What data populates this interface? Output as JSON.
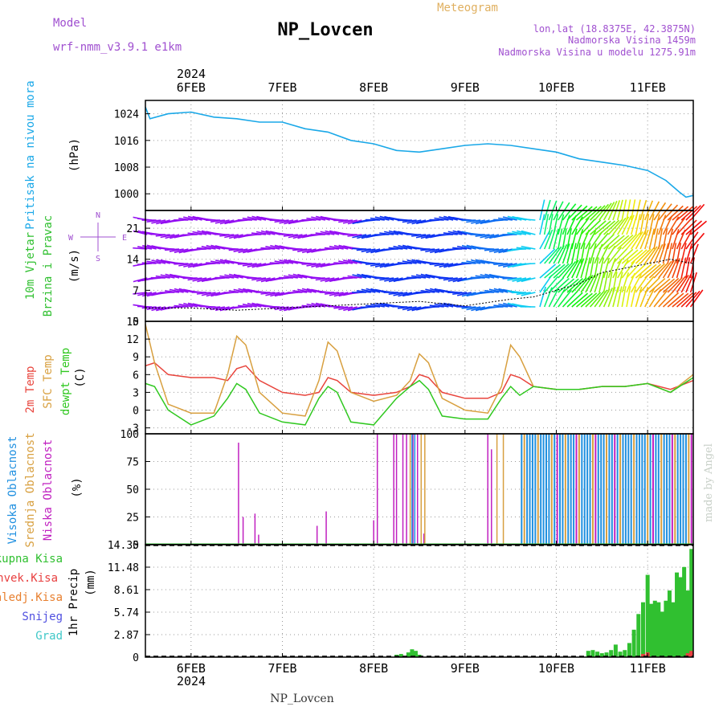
{
  "header": {
    "model_label": "Model",
    "model_name": "wrf-nmm_v3.9.1  e1km",
    "station": "NP_Lovcen",
    "product": "Meteogram",
    "lonlat": "lon,lat (18.8375E, 42.3875N)",
    "elevation": "Nadmorska Visina 1459m",
    "model_elevation": "Nadmorska Visina u modelu 1275.91m"
  },
  "footer_station": "NP_Lovcen",
  "watermark": "made by Angel",
  "year": "2024",
  "colors": {
    "pressure": "#1aa8e8",
    "temp": "#e8443c",
    "sfc": "#d8a040",
    "dew": "#30c820",
    "high_cloud": "#2090e0",
    "mid_cloud": "#d8a040",
    "low_cloud": "#c020c0",
    "precip_total": "#30c030",
    "precip_conv": "#e84040"
  },
  "chart_data": [
    {
      "type": "line",
      "panel": "pressure",
      "ylabel": [
        "Pritisak na nivou mora",
        "(hPa)"
      ],
      "ylim": [
        995,
        1028
      ],
      "yticks": [
        1000,
        1008,
        1016,
        1024
      ],
      "x_ticks": [
        "6FEB",
        "7FEB",
        "8FEB",
        "9FEB",
        "10FEB",
        "11FEB"
      ],
      "x_range_days": [
        5.5,
        11.5
      ],
      "grid": true,
      "series": [
        {
          "name": "",
          "x": [
            5.5,
            5.55,
            5.75,
            6.0,
            6.25,
            6.5,
            6.75,
            7.0,
            7.25,
            7.5,
            7.75,
            8.0,
            8.25,
            8.5,
            8.75,
            9.0,
            9.25,
            9.5,
            9.75,
            10.0,
            10.25,
            10.5,
            10.75,
            11.0,
            11.2,
            11.35,
            11.42,
            11.5
          ],
          "values": [
            1026,
            1022.5,
            1024,
            1024.5,
            1023,
            1022.5,
            1021.5,
            1021.5,
            1019.5,
            1018.5,
            1016,
            1015,
            1013,
            1012.5,
            1013.5,
            1014.5,
            1015,
            1014.5,
            1013.5,
            1012.5,
            1010.5,
            1009.5,
            1008.5,
            1007,
            1004,
            1000.5,
            999,
            999.5
          ]
        }
      ]
    },
    {
      "type": "line",
      "panel": "wind",
      "ylabel": [
        "10m Vjetar",
        "Brzina i Pravac",
        "(m/s)"
      ],
      "compass": [
        "N",
        "W",
        "E",
        "S"
      ],
      "ylim": [
        0,
        25
      ],
      "yticks": [
        0,
        7,
        14,
        21
      ],
      "grid": true,
      "series": [
        {
          "name": "",
          "x": [
            5.5,
            6.0,
            6.5,
            7.0,
            7.5,
            8.0,
            8.5,
            9.0,
            9.5,
            9.75,
            10.0,
            10.25,
            10.5,
            10.75,
            11.0,
            11.25,
            11.5
          ],
          "values": [
            3,
            3,
            2.5,
            3,
            3.5,
            4,
            4.5,
            3.5,
            5,
            5.5,
            7,
            8.5,
            11,
            12,
            13,
            14,
            13
          ]
        }
      ]
    },
    {
      "type": "line",
      "panel": "temperature",
      "ylabel": [
        "2m Temp",
        "SFC Temp",
        "dewpt Temp",
        "(C)"
      ],
      "ylim": [
        -4,
        15
      ],
      "yticks": [
        -3,
        0,
        3,
        6,
        9,
        12,
        15
      ],
      "grid": true,
      "series": [
        {
          "name": "2m Temp",
          "x": [
            5.5,
            5.6,
            5.75,
            6.0,
            6.25,
            6.4,
            6.5,
            6.6,
            6.75,
            7.0,
            7.25,
            7.4,
            7.5,
            7.6,
            7.75,
            8.0,
            8.25,
            8.4,
            8.5,
            8.6,
            8.75,
            9.0,
            9.25,
            9.4,
            9.5,
            9.6,
            9.75,
            10.0,
            10.25,
            10.5,
            10.75,
            11.0,
            11.25,
            11.5
          ],
          "values": [
            7.5,
            8,
            6,
            5.5,
            5.5,
            5,
            7,
            7.5,
            5,
            3,
            2.5,
            3,
            5.5,
            5,
            3,
            2.5,
            3,
            4,
            6,
            5.5,
            3,
            2,
            2,
            3,
            6,
            5.5,
            4,
            3.5,
            3.5,
            4,
            4,
            4.5,
            3.5,
            5
          ]
        },
        {
          "name": "SFC Temp",
          "x": [
            5.5,
            5.6,
            5.75,
            6.0,
            6.25,
            6.4,
            6.5,
            6.6,
            6.75,
            7.0,
            7.25,
            7.4,
            7.5,
            7.6,
            7.75,
            8.0,
            8.25,
            8.4,
            8.5,
            8.6,
            8.75,
            9.0,
            9.25,
            9.4,
            9.5,
            9.6,
            9.75,
            10.0,
            10.25,
            10.5,
            10.75,
            11.0,
            11.25,
            11.5
          ],
          "values": [
            14.5,
            8,
            1,
            -0.5,
            -0.5,
            6,
            12.5,
            11,
            3,
            -0.5,
            -1,
            5,
            11.5,
            10,
            3,
            1.5,
            2.5,
            5,
            9.5,
            8,
            2,
            0,
            -0.5,
            4,
            11,
            9,
            4,
            3.5,
            3.5,
            4,
            4,
            4.5,
            3,
            6
          ]
        },
        {
          "name": "dewpt Temp",
          "x": [
            5.5,
            5.6,
            5.75,
            6.0,
            6.25,
            6.4,
            6.5,
            6.6,
            6.75,
            7.0,
            7.25,
            7.4,
            7.5,
            7.6,
            7.75,
            8.0,
            8.25,
            8.4,
            8.5,
            8.6,
            8.75,
            9.0,
            9.25,
            9.4,
            9.5,
            9.6,
            9.75,
            10.0,
            10.25,
            10.5,
            10.75,
            11.0,
            11.25,
            11.5
          ],
          "values": [
            4.5,
            4,
            0,
            -2.5,
            -1,
            2,
            4.5,
            3.5,
            -0.5,
            -2,
            -2.5,
            2,
            4,
            3,
            -2,
            -2.5,
            2,
            4,
            5,
            3.5,
            -1,
            -1.5,
            -1.5,
            2,
            4,
            2.5,
            4,
            3.5,
            3.5,
            4,
            4,
            4.5,
            3,
            5.5
          ]
        }
      ]
    },
    {
      "type": "bar",
      "panel": "cloud",
      "ylabel": [
        "Visoka Oblacnost",
        "Srednja Oblacnost",
        "Niska Oblacnost",
        "(%)"
      ],
      "ylim": [
        0,
        100
      ],
      "yticks": [
        0,
        25,
        50,
        75,
        100
      ],
      "grid": true,
      "series": [
        {
          "name": "Niska Oblacnost",
          "x": [
            6.52,
            6.57,
            6.7,
            6.74,
            7.38,
            7.48,
            8.0,
            8.04,
            8.22,
            8.25,
            8.32,
            8.36,
            8.43,
            8.48,
            8.55,
            9.25,
            9.29
          ],
          "values": [
            92,
            25,
            28,
            9,
            17,
            30,
            22,
            100,
            100,
            100,
            100,
            100,
            100,
            100,
            10,
            100,
            86
          ]
        },
        {
          "name": "Srednja Oblacnost",
          "x": [
            8.4,
            8.52,
            8.56,
            9.35,
            9.42
          ],
          "values": [
            100,
            100,
            100,
            100,
            100
          ]
        },
        {
          "name": "Visoka Oblacnost",
          "x": [
            8.42,
            8.45,
            9.62
          ],
          "values": [
            100,
            100,
            100
          ]
        },
        {
          "name": "Visoka Oblacnost",
          "x_range": [
            9.62,
            11.48
          ],
          "values": [
            100
          ]
        }
      ]
    },
    {
      "type": "bar",
      "panel": "precip",
      "ylabel": [
        "1hr Precip",
        "(mm)"
      ],
      "legend": [
        "Ukupna  Kisa",
        "Konvek.Kisa",
        "Zaledj.Kisa",
        "Snijeg",
        "Grad"
      ],
      "ylim": [
        0,
        14.35
      ],
      "yticks": [
        "0",
        "2.87",
        "5.74",
        "8.61",
        "11.48",
        "14.35"
      ],
      "grid": true,
      "series": [
        {
          "name": "Ukupna  Kisa",
          "x": [
            8.25,
            8.3,
            8.38,
            8.42,
            8.46,
            8.5,
            10.35,
            10.4,
            10.45,
            10.5,
            10.55,
            10.6,
            10.65,
            10.7,
            10.75,
            10.8,
            10.85,
            10.9,
            10.95,
            11.0,
            11.04,
            11.08,
            11.12,
            11.16,
            11.2,
            11.24,
            11.28,
            11.32,
            11.36,
            11.4,
            11.44,
            11.48
          ],
          "values": [
            0.3,
            0.4,
            0.6,
            1,
            0.8,
            0.3,
            0.8,
            0.9,
            0.7,
            0.5,
            0.6,
            0.9,
            1.6,
            0.7,
            0.9,
            1.8,
            3.5,
            5.5,
            7,
            10.5,
            6.8,
            7.2,
            7,
            5.8,
            7.2,
            8.5,
            7,
            10.8,
            10.2,
            11.5,
            8.5,
            13.8
          ]
        },
        {
          "name": "Konvek.Kisa",
          "x": [
            10.95,
            11.0,
            11.44,
            11.48
          ],
          "values": [
            0.4,
            0.6,
            0.5,
            0.8
          ]
        }
      ]
    }
  ]
}
